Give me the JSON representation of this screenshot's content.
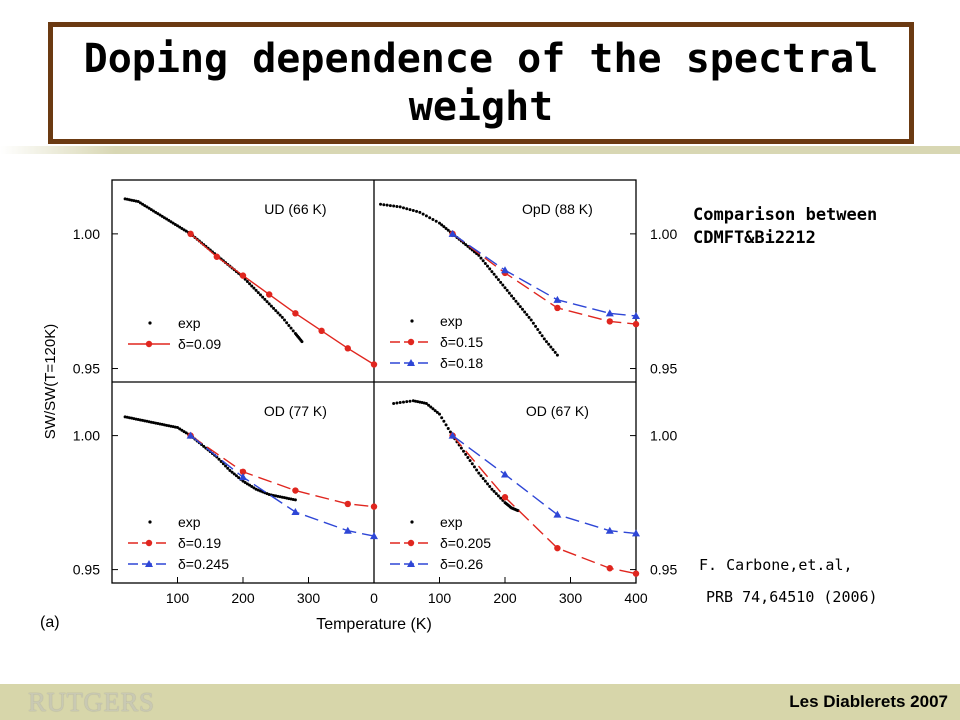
{
  "title": "Doping dependence of the spectral weight",
  "side_note": [
    "Comparison between",
    "CDMFT&Bi2212"
  ],
  "citation": [
    "F. Carbone,et.al,",
    "PRB 74,64510 (2006)"
  ],
  "footer": {
    "logo": "RUTGERS",
    "conference": "Les Diablerets 2007"
  },
  "colors": {
    "title_border": "#6b3a12",
    "footer_bg": "#d7d6aa",
    "red": "#e0261f",
    "blue": "#2e46d6",
    "exp": "#000000"
  },
  "chart_data": {
    "type": "scatter",
    "panel_label": "(a)",
    "xlabel": "Temperature (K)",
    "ylabel": "SW/SW(T=120K)",
    "xlim": [
      0,
      400
    ],
    "ylim": [
      0.945,
      1.02
    ],
    "xticks": [
      "100",
      "200",
      "300",
      "0",
      "100",
      "200",
      "300",
      "400"
    ],
    "yticks_left_top": [
      "1.00",
      "0.95"
    ],
    "yticks_left_bottom": [
      "1.00",
      "0.95"
    ],
    "yticks_right_top": [
      "1.00",
      "0.95"
    ],
    "yticks_right_bottom": [
      "1.00",
      "0.95"
    ],
    "panels": [
      {
        "title": "UD (66 K)",
        "series": [
          {
            "name": "exp",
            "kind": "exp",
            "x": [
              20,
              40,
              60,
              80,
              100,
              120,
              140,
              160,
              180,
              200,
              220,
              240,
              260,
              280,
              290
            ],
            "y": [
              1.013,
              1.012,
              1.009,
              1.006,
              1.003,
              1.0,
              0.996,
              0.992,
              0.988,
              0.984,
              0.979,
              0.974,
              0.969,
              0.963,
              0.96
            ]
          },
          {
            "name": "δ=0.09",
            "kind": "red",
            "x": [
              120,
              160,
              200,
              240,
              280,
              320,
              360,
              400
            ],
            "y": [
              1.0,
              0.9915,
              0.9845,
              0.9775,
              0.9705,
              0.964,
              0.9575,
              0.9515
            ]
          }
        ]
      },
      {
        "title": "OpD (88 K)",
        "series": [
          {
            "name": "exp",
            "kind": "exp",
            "x": [
              10,
              40,
              70,
              100,
              120,
              140,
              160,
              180,
              200,
              220,
              240,
              260,
              280
            ],
            "y": [
              1.011,
              1.01,
              1.008,
              1.004,
              1.0,
              0.996,
              0.992,
              0.986,
              0.98,
              0.974,
              0.968,
              0.961,
              0.955
            ]
          },
          {
            "name": "δ=0.15",
            "kind": "red",
            "x": [
              120,
              200,
              280,
              360,
              400
            ],
            "y": [
              1.0,
              0.9855,
              0.9725,
              0.9675,
              0.9665
            ]
          },
          {
            "name": "δ=0.18",
            "kind": "blue",
            "x": [
              120,
              200,
              280,
              360,
              400
            ],
            "y": [
              1.0,
              0.9865,
              0.9755,
              0.9705,
              0.9695
            ]
          }
        ]
      },
      {
        "title": "OD (77 K)",
        "series": [
          {
            "name": "exp",
            "kind": "exp",
            "x": [
              20,
              40,
              60,
              80,
              100,
              120,
              140,
              160,
              180,
              200,
              220,
              240,
              260,
              280
            ],
            "y": [
              1.007,
              1.006,
              1.005,
              1.004,
              1.003,
              1.0,
              0.996,
              0.992,
              0.987,
              0.983,
              0.98,
              0.978,
              0.977,
              0.976
            ]
          },
          {
            "name": "δ=0.19",
            "kind": "red",
            "x": [
              120,
              200,
              280,
              360,
              400
            ],
            "y": [
              1.0,
              0.9865,
              0.9795,
              0.9745,
              0.9735
            ]
          },
          {
            "name": "δ=0.245",
            "kind": "blue",
            "x": [
              120,
              200,
              280,
              360,
              400
            ],
            "y": [
              1.0,
              0.9845,
              0.9715,
              0.9645,
              0.9625
            ]
          }
        ]
      },
      {
        "title": "OD (67 K)",
        "series": [
          {
            "name": "exp",
            "kind": "exp",
            "x": [
              30,
              60,
              80,
              100,
              120,
              140,
              160,
              180,
              200,
              210,
              220
            ],
            "y": [
              1.012,
              1.013,
              1.012,
              1.008,
              1.0,
              0.993,
              0.986,
              0.98,
              0.975,
              0.973,
              0.972
            ]
          },
          {
            "name": "δ=0.205",
            "kind": "red",
            "x": [
              120,
              200,
              280,
              360,
              400
            ],
            "y": [
              1.0,
              0.977,
              0.958,
              0.9505,
              0.9485
            ]
          },
          {
            "name": "δ=0.26",
            "kind": "blue",
            "x": [
              120,
              200,
              280,
              360,
              400
            ],
            "y": [
              1.0,
              0.9855,
              0.9705,
              0.9645,
              0.9635
            ]
          }
        ]
      }
    ]
  }
}
